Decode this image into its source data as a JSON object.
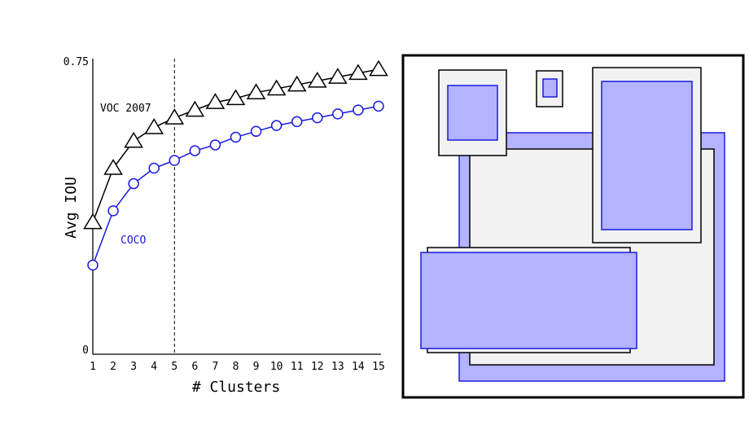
{
  "chart_data": [
    {
      "type": "line",
      "title": "",
      "xlabel": "# Clusters",
      "ylabel": "Avg IOU",
      "x": [
        1,
        2,
        3,
        4,
        5,
        6,
        7,
        8,
        9,
        10,
        11,
        12,
        13,
        14,
        15
      ],
      "xlim": [
        1,
        15
      ],
      "ylim": [
        0,
        0.75
      ],
      "y_tick_labels": [
        "0",
        "0.75"
      ],
      "x_tick_labels": [
        "1",
        "2",
        "3",
        "4",
        "5",
        "6",
        "7",
        "8",
        "9",
        "10",
        "11",
        "12",
        "13",
        "14",
        "15"
      ],
      "vline_x": 5,
      "grid": false,
      "series": [
        {
          "name": "VOC 2007",
          "marker": "triangle",
          "color": "#000000",
          "values": [
            0.34,
            0.48,
            0.55,
            0.585,
            0.61,
            0.63,
            0.65,
            0.66,
            0.675,
            0.685,
            0.695,
            0.705,
            0.715,
            0.725,
            0.735
          ]
        },
        {
          "name": "COCO",
          "marker": "circle",
          "color": "#1a1adf",
          "values": [
            0.23,
            0.37,
            0.44,
            0.48,
            0.5,
            0.525,
            0.54,
            0.56,
            0.575,
            0.59,
            0.6,
            0.61,
            0.62,
            0.63,
            0.64
          ]
        }
      ]
    },
    {
      "type": "diagram",
      "colors": {
        "prior_fill": "#f2f2f2",
        "prior_stroke": "#000000",
        "cluster_fill": "#b3b3ff",
        "cluster_stroke": "#1a1adf"
      }
    }
  ]
}
